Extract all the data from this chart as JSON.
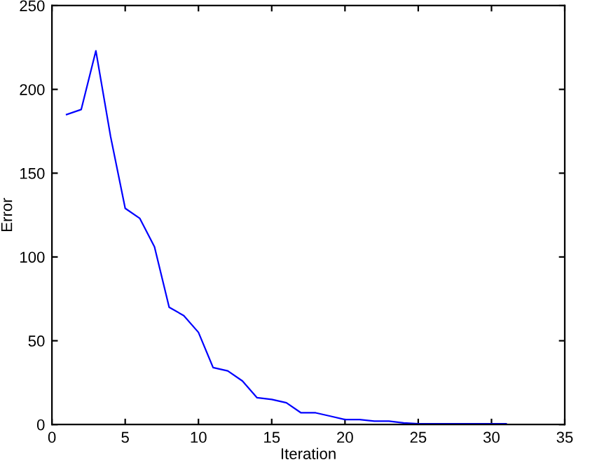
{
  "chart_data": {
    "type": "line",
    "xlabel": "Iteration",
    "ylabel": "Error",
    "x": [
      1,
      2,
      3,
      4,
      5,
      6,
      7,
      8,
      9,
      10,
      11,
      12,
      13,
      14,
      15,
      16,
      17,
      18,
      19,
      20,
      21,
      22,
      23,
      24,
      25,
      26,
      27,
      28,
      29,
      30,
      31
    ],
    "series": [
      {
        "color": "#0000ff",
        "values": [
          185,
          188,
          223,
          172,
          129,
          123,
          106,
          70,
          65,
          55,
          34,
          32,
          26,
          16,
          15,
          13,
          7,
          7,
          5,
          3,
          3,
          2,
          2,
          1,
          0.5,
          0.5,
          0.5,
          0.5,
          0.5,
          0.5,
          0.5
        ]
      }
    ],
    "xlim": [
      0,
      35
    ],
    "xticks": [
      0,
      5,
      10,
      15,
      20,
      25,
      30,
      35
    ],
    "ylim": [
      0,
      250
    ],
    "yticks": [
      0,
      50,
      100,
      150,
      200,
      250
    ],
    "grid": false,
    "legend": false,
    "marker": "none",
    "line_style": "solid"
  }
}
